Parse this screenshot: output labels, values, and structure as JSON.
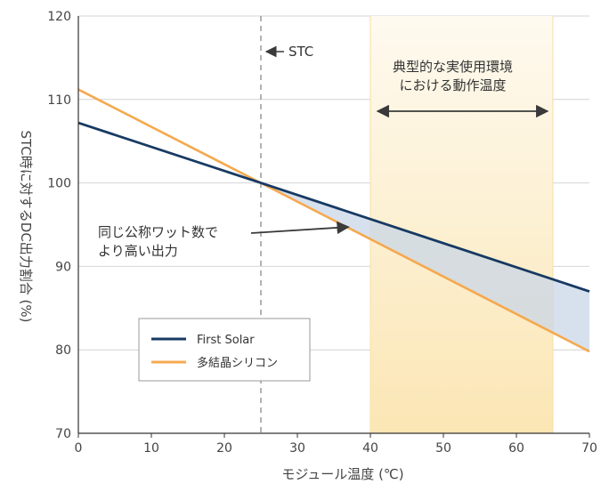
{
  "chart_data": {
    "type": "line",
    "xlabel": "モジュール温度 (℃)",
    "ylabel": "STC時に対するDC出力割合 (%)",
    "xlim": [
      0,
      70
    ],
    "ylim": [
      70,
      120
    ],
    "x_ticks": [
      "0",
      "10",
      "20",
      "30",
      "40",
      "50",
      "60",
      "70"
    ],
    "y_ticks": [
      "70",
      "80",
      "90",
      "100",
      "110",
      "120"
    ],
    "grid": "horizontal",
    "legend_position": "bottom-left",
    "series": [
      {
        "name": "First Solar",
        "color": "#173a63",
        "x": [
          0,
          25,
          70
        ],
        "y": [
          107.2,
          100,
          87.0
        ]
      },
      {
        "name": "多結晶シリコン",
        "color": "#f5a94e",
        "x": [
          0,
          25,
          70
        ],
        "y": [
          111.2,
          100,
          79.8
        ]
      }
    ],
    "fill_between": {
      "color": "#c7d5e8",
      "x_range": [
        25,
        70
      ]
    },
    "stc_line": {
      "x": 25,
      "label": "STC"
    },
    "shaded_range": {
      "x_range": [
        40,
        65
      ],
      "color": "#fdeec5",
      "label_lines": [
        "典型的な実使用環境",
        "における動作温度"
      ]
    },
    "annotation": {
      "lines": [
        "同じ公称ワット数で",
        "より高い出力"
      ],
      "arrow_to": [
        37,
        96
      ]
    }
  }
}
